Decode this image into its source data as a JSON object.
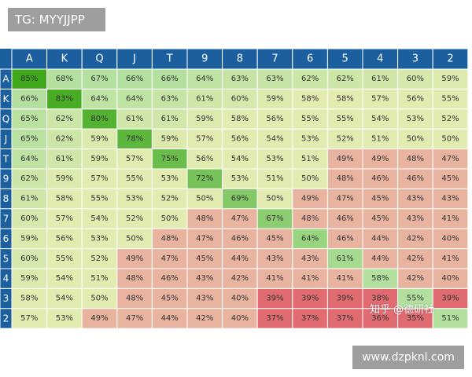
{
  "tag_label": "TG: MYYJJPP",
  "watermark_zh": "知乎 @德研社",
  "website_label": "www.dzpknl.com",
  "colors": {
    "header_bg": "#1b5f9e",
    "header_text": "#ffffff",
    "high": "#3fa81a",
    "light_green": "#b3e09e",
    "neutral": "#e2ebb0",
    "salmon": "#e8b4a0",
    "red": "#e06b71",
    "cell_text": "#333333",
    "border": "#ffffff"
  },
  "chart_data": {
    "type": "heatmap",
    "title": "",
    "x_labels": [
      "A",
      "K",
      "Q",
      "J",
      "T",
      "9",
      "8",
      "7",
      "6",
      "5",
      "4",
      "3",
      "2"
    ],
    "y_labels": [
      "A",
      "K",
      "Q",
      "J",
      "T",
      "9",
      "8",
      "7",
      "6",
      "5",
      "4",
      "3",
      "2"
    ],
    "value_unit": "%",
    "values": [
      [
        85,
        68,
        67,
        66,
        66,
        64,
        63,
        63,
        62,
        62,
        61,
        60,
        59
      ],
      [
        66,
        83,
        64,
        64,
        63,
        61,
        60,
        59,
        58,
        58,
        57,
        56,
        55
      ],
      [
        65,
        62,
        80,
        61,
        61,
        59,
        58,
        56,
        55,
        55,
        54,
        53,
        52
      ],
      [
        65,
        62,
        59,
        78,
        59,
        57,
        56,
        54,
        53,
        52,
        51,
        50,
        50
      ],
      [
        64,
        61,
        59,
        57,
        75,
        56,
        54,
        53,
        51,
        49,
        49,
        48,
        47
      ],
      [
        62,
        59,
        57,
        55,
        53,
        72,
        53,
        51,
        50,
        48,
        46,
        46,
        45
      ],
      [
        61,
        58,
        55,
        53,
        52,
        50,
        69,
        50,
        49,
        47,
        45,
        43,
        43
      ],
      [
        60,
        57,
        54,
        52,
        50,
        48,
        47,
        67,
        48,
        46,
        45,
        43,
        41
      ],
      [
        59,
        56,
        53,
        50,
        48,
        47,
        46,
        45,
        64,
        46,
        44,
        42,
        40
      ],
      [
        60,
        55,
        52,
        49,
        47,
        45,
        44,
        43,
        43,
        61,
        44,
        42,
        41
      ],
      [
        59,
        54,
        51,
        48,
        46,
        43,
        42,
        41,
        41,
        41,
        58,
        42,
        40
      ],
      [
        58,
        54,
        50,
        48,
        45,
        43,
        40,
        39,
        39,
        39,
        38,
        55,
        39
      ],
      [
        57,
        53,
        49,
        47,
        44,
        42,
        40,
        37,
        37,
        37,
        36,
        35,
        51
      ]
    ]
  }
}
